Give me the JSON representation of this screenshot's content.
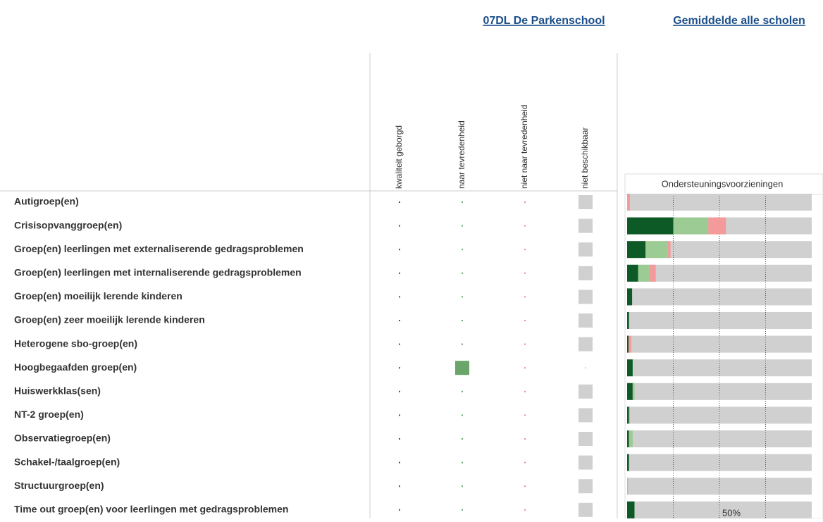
{
  "header": {
    "links": [
      "07DL De Parkenschool",
      "Gemiddelde alle scholen"
    ]
  },
  "chart_data": [
    {
      "type": "matrix",
      "columns": [
        "kwaliteit geborgd",
        "naar tevredenheid",
        "niet naar tevredenheid",
        "niet beschikbaar"
      ],
      "column_colors": [
        "#1e6b30",
        "#6aa66a",
        "#f08a8a",
        "#d0d0d0"
      ],
      "categories": [
        "Autigroep(en)",
        "Crisisopvanggroep(en)",
        "Groep(en) leerlingen met externaliserende gedragsproblemen",
        "Groep(en) leerlingen met internaliserende gedragsproblemen",
        "Groep(en) moeilijk lerende kinderen",
        "Groep(en) zeer moeilijk lerende kinderen",
        "Heterogene sbo-groep(en)",
        "Hoogbegaafden groep(en)",
        "Huiswerkklas(sen)",
        "NT-2 groep(en)",
        "Observatiegroep(en)",
        "Schakel-/taalgroep(en)",
        "Structuurgroep(en)",
        "Time out groep(en) voor leerlingen met gedragsproblemen"
      ],
      "values": [
        [
          0,
          0,
          0,
          1
        ],
        [
          0,
          0,
          0,
          1
        ],
        [
          0,
          0,
          0,
          1
        ],
        [
          0,
          0,
          0,
          1
        ],
        [
          0,
          0,
          0,
          1
        ],
        [
          0,
          0,
          0,
          1
        ],
        [
          0,
          0,
          0,
          1
        ],
        [
          0,
          1,
          0,
          0
        ],
        [
          0,
          0,
          0,
          1
        ],
        [
          0,
          0,
          0,
          1
        ],
        [
          0,
          0,
          0,
          1
        ],
        [
          0,
          0,
          0,
          1
        ],
        [
          0,
          0,
          0,
          1
        ],
        [
          0,
          0,
          0,
          1
        ]
      ]
    },
    {
      "type": "stacked-bar",
      "title": "Ondersteuningsvoorzieningen",
      "xlim": [
        0,
        100
      ],
      "gridlines": [
        25,
        50,
        75
      ],
      "xticks": [
        {
          "value": 50,
          "label": "50%"
        }
      ],
      "series": [
        {
          "color": "#0e5a26",
          "values": [
            0,
            25,
            10,
            6,
            2.7,
            1,
            0.8,
            3,
            3,
            1,
            1,
            1,
            0,
            4
          ]
        },
        {
          "color": "#9ccc94",
          "values": [
            0,
            19,
            12,
            6,
            0,
            0,
            0,
            0,
            1,
            0.5,
            2,
            0,
            0.5,
            0
          ]
        },
        {
          "color": "#f59a9a",
          "values": [
            1.5,
            9.5,
            1.5,
            3.5,
            0,
            0,
            1.5,
            0,
            0,
            0,
            0,
            0,
            0,
            0
          ]
        }
      ]
    }
  ]
}
